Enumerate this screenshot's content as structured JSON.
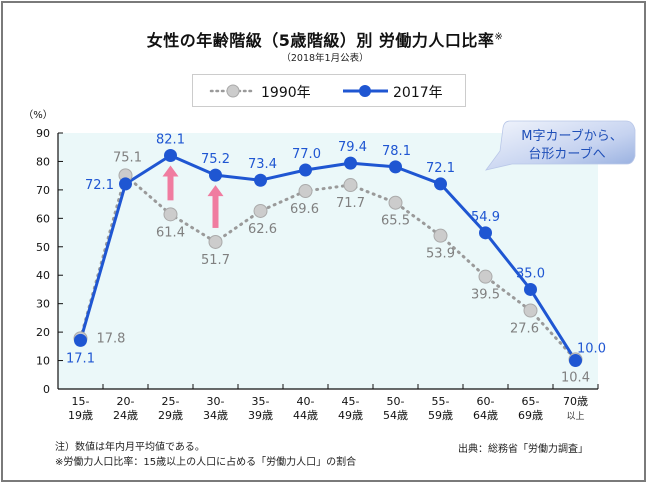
{
  "chart_data": {
    "type": "line",
    "title": "女性の年齢階級（5歳階級）別 労働力人口比率",
    "title_mark": "※",
    "subtitle": "（2018年1月公表）",
    "ylabel": "（%）",
    "xlabel": "",
    "ylim": [
      0,
      90
    ],
    "yticks": [
      "0",
      "10",
      "20",
      "30",
      "40",
      "50",
      "60",
      "70",
      "80",
      "90"
    ],
    "categories": [
      [
        "15-",
        "19歳"
      ],
      [
        "20-",
        "24歳"
      ],
      [
        "25-",
        "29歳"
      ],
      [
        "30-",
        "34歳"
      ],
      [
        "35-",
        "39歳"
      ],
      [
        "40-",
        "44歳"
      ],
      [
        "45-",
        "49歳"
      ],
      [
        "50-",
        "54歳"
      ],
      [
        "55-",
        "59歳"
      ],
      [
        "60-",
        "64歳"
      ],
      [
        "65-",
        "69歳"
      ],
      [
        "70歳",
        "以上"
      ]
    ],
    "series": [
      {
        "name": "1990年",
        "style": "dotted",
        "color": "#9a9a9a",
        "marker_color": "#cccccc",
        "values": [
          17.8,
          75.1,
          61.4,
          51.7,
          62.6,
          69.6,
          71.7,
          65.5,
          53.9,
          39.5,
          27.6,
          10.4
        ],
        "labels": [
          "17.8",
          "75.1",
          "61.4",
          "51.7",
          "62.6",
          "69.6",
          "71.7",
          "65.5",
          "53.9",
          "39.5",
          "27.6",
          "10.4"
        ]
      },
      {
        "name": "2017年",
        "style": "solid",
        "color": "#1f56d2",
        "marker_color": "#1f56d2",
        "values": [
          17.1,
          72.1,
          82.1,
          75.2,
          73.4,
          77.0,
          79.4,
          78.1,
          72.1,
          54.9,
          35.0,
          10.0
        ],
        "labels": [
          "17.1",
          "72.1",
          "82.1",
          "75.2",
          "73.4",
          "77.0",
          "79.4",
          "78.1",
          "72.1",
          "54.9",
          "35.0",
          "10.0"
        ]
      }
    ],
    "legend_position": "top-center",
    "annotations": {
      "callout_lines": [
        "M字カーブから、",
        "台形カーブへ"
      ],
      "arrows": [
        "25-29歳",
        "30-34歳"
      ],
      "arrow_color": "#f07ca0"
    },
    "plot_background": "#ebf8f9",
    "grid": false
  },
  "notes": [
    "注）数値は年内月平均値である。",
    "※労働力人口比率：15歳以上の人口に占める「労働力人口」の割合"
  ],
  "source": "出典：総務省「労働力調査」"
}
